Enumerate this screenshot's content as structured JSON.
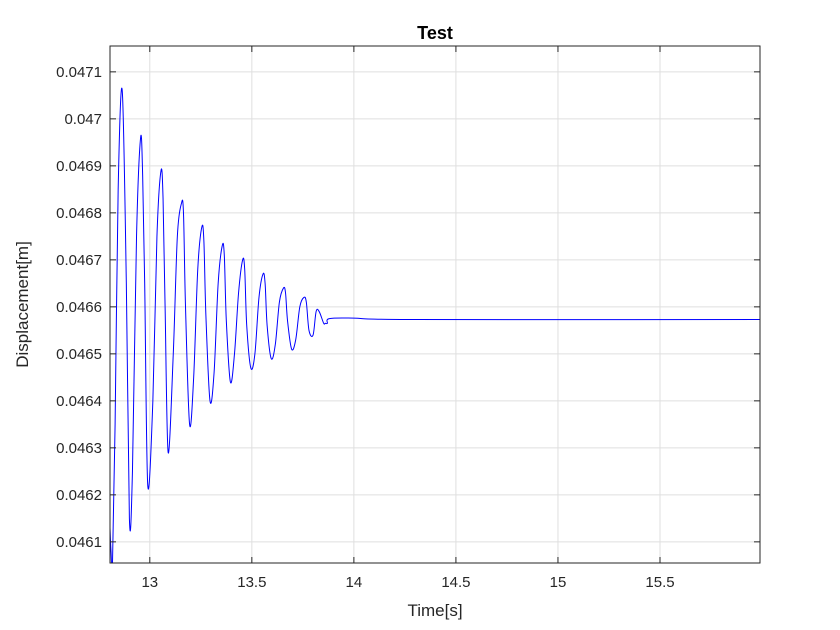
{
  "chart_data": {
    "type": "line",
    "title": "Test",
    "xlabel": "Time[s]",
    "ylabel": "Displacement[m]",
    "xlim": [
      12.805,
      15.99
    ],
    "ylim": [
      0.046055,
      0.047155
    ],
    "grid": true,
    "legend": "none",
    "xticks": [
      13,
      13.5,
      14,
      14.5,
      15,
      15.5
    ],
    "xtick_labels": [
      "13",
      "13.5",
      "14",
      "14.5",
      "15",
      "15.5"
    ],
    "yticks": [
      0.0461,
      0.0462,
      0.0463,
      0.0464,
      0.0465,
      0.0466,
      0.0467,
      0.0468,
      0.0469,
      0.047,
      0.0471
    ],
    "ytick_labels": [
      "0.0461",
      "0.0462",
      "0.0463",
      "0.0464",
      "0.0465",
      "0.0466",
      "0.0467",
      "0.0468",
      "0.0469",
      "0.047",
      "0.0471"
    ],
    "colors": {
      "line": "#0000ff",
      "grid": "#dfdfdf",
      "axes": "#262626",
      "background": "#ffffff"
    },
    "series": [
      {
        "x": [
          12.805,
          12.81,
          12.817,
          12.83,
          12.845,
          12.865,
          12.885,
          12.9,
          12.915,
          12.935,
          12.955,
          12.965,
          12.975,
          12.99,
          13.015,
          13.035,
          13.055,
          13.065,
          13.075,
          13.09,
          13.115,
          13.135,
          13.155,
          13.165,
          13.175,
          13.195,
          13.215,
          13.235,
          13.255,
          13.265,
          13.275,
          13.295,
          13.315,
          13.335,
          13.355,
          13.365,
          13.375,
          13.395,
          13.415,
          13.435,
          13.455,
          13.465,
          13.475,
          13.495,
          13.515,
          13.535,
          13.555,
          13.565,
          13.575,
          13.595,
          13.615,
          13.635,
          13.655,
          13.665,
          13.675,
          13.695,
          13.715,
          13.735,
          13.755,
          13.767,
          13.78,
          13.8,
          13.815,
          13.83,
          13.852,
          13.86,
          13.87,
          13.88,
          14.0,
          14.3,
          15.99
        ],
        "y": [
          0.04613,
          0.04608,
          0.04605,
          0.04635,
          0.04685,
          0.04706,
          0.04665,
          0.04615,
          0.04625,
          0.04675,
          0.04696,
          0.04688,
          0.04665,
          0.04622,
          0.0464,
          0.04675,
          0.04689,
          0.04683,
          0.0466,
          0.04629,
          0.0465,
          0.04675,
          0.04682,
          0.0468,
          0.0466,
          0.04635,
          0.04645,
          0.04668,
          0.04677,
          0.04674,
          0.04658,
          0.0464,
          0.04646,
          0.04665,
          0.04673,
          0.04671,
          0.04657,
          0.04644,
          0.0465,
          0.04663,
          0.0467,
          0.04668,
          0.04656,
          0.04647,
          0.0465,
          0.04662,
          0.04667,
          0.04665,
          0.04656,
          0.04649,
          0.04652,
          0.04661,
          0.04664,
          0.04663,
          0.04657,
          0.04651,
          0.04653,
          0.0466,
          0.04662,
          0.04661,
          0.04655,
          0.04654,
          0.04659,
          0.04659,
          0.046565,
          0.046565,
          0.046565,
          0.046575,
          0.046576,
          0.046573,
          0.046573
        ]
      }
    ]
  }
}
